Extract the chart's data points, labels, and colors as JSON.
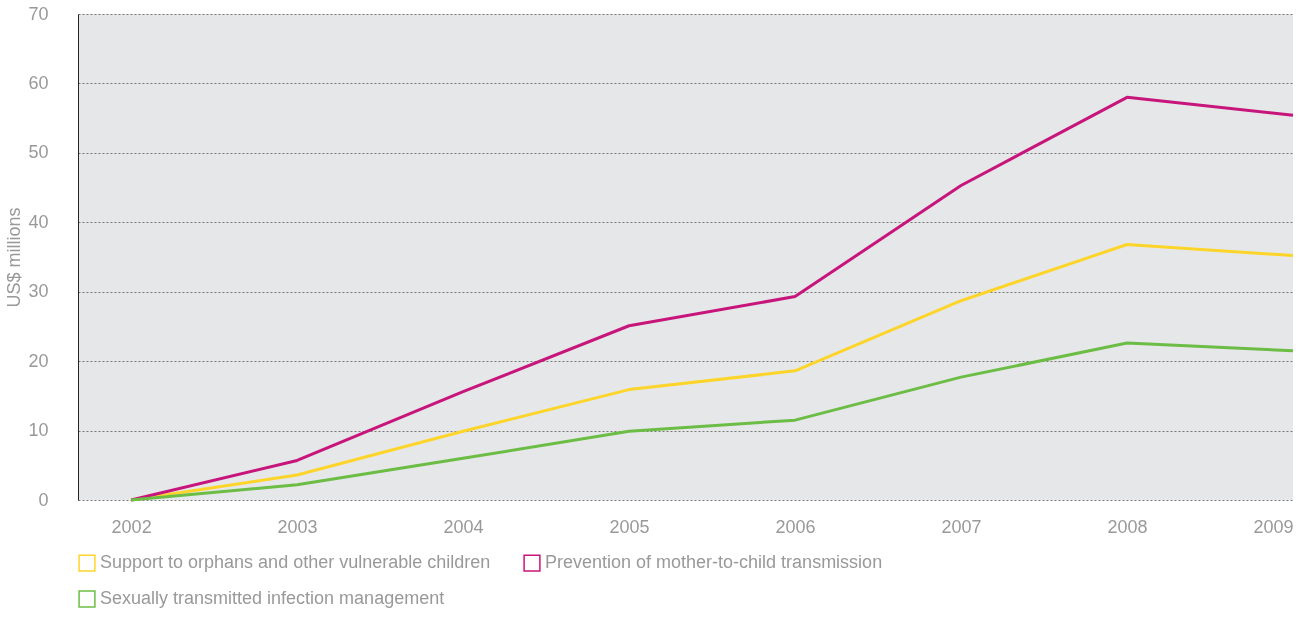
{
  "chart_data": {
    "type": "line",
    "ylabel": "US$ millions",
    "x": [
      2002,
      2003,
      2004,
      2005,
      2006,
      2007,
      2008,
      2009
    ],
    "series": [
      {
        "name": "Support to orphans and other vulnerable children",
        "color": "#fdd52a",
        "values": [
          0,
          3.6,
          9.9,
          15.9,
          18.6,
          28.7,
          36.8,
          35.2
        ]
      },
      {
        "name": "Prevention of mother-to-child transmission",
        "color": "#c7157b",
        "values": [
          0,
          5.7,
          15.6,
          25.1,
          29.3,
          45.3,
          58.0,
          55.4
        ]
      },
      {
        "name": "Sexually transmitted infection management",
        "color": "#6cbd45",
        "values": [
          0,
          2.2,
          6.0,
          9.9,
          11.5,
          17.7,
          22.6,
          21.5
        ]
      }
    ],
    "xlim": [
      2001.68,
      2009
    ],
    "xticks": [
      2002,
      2003,
      2004,
      2005,
      2006,
      2007,
      2008,
      2009
    ],
    "ylim": [
      0,
      70
    ],
    "yticks": [
      0,
      10,
      20,
      30,
      40,
      50,
      60,
      70
    ],
    "grid": "y",
    "legend": "bottom",
    "marker": "none",
    "line_style": "solid"
  }
}
